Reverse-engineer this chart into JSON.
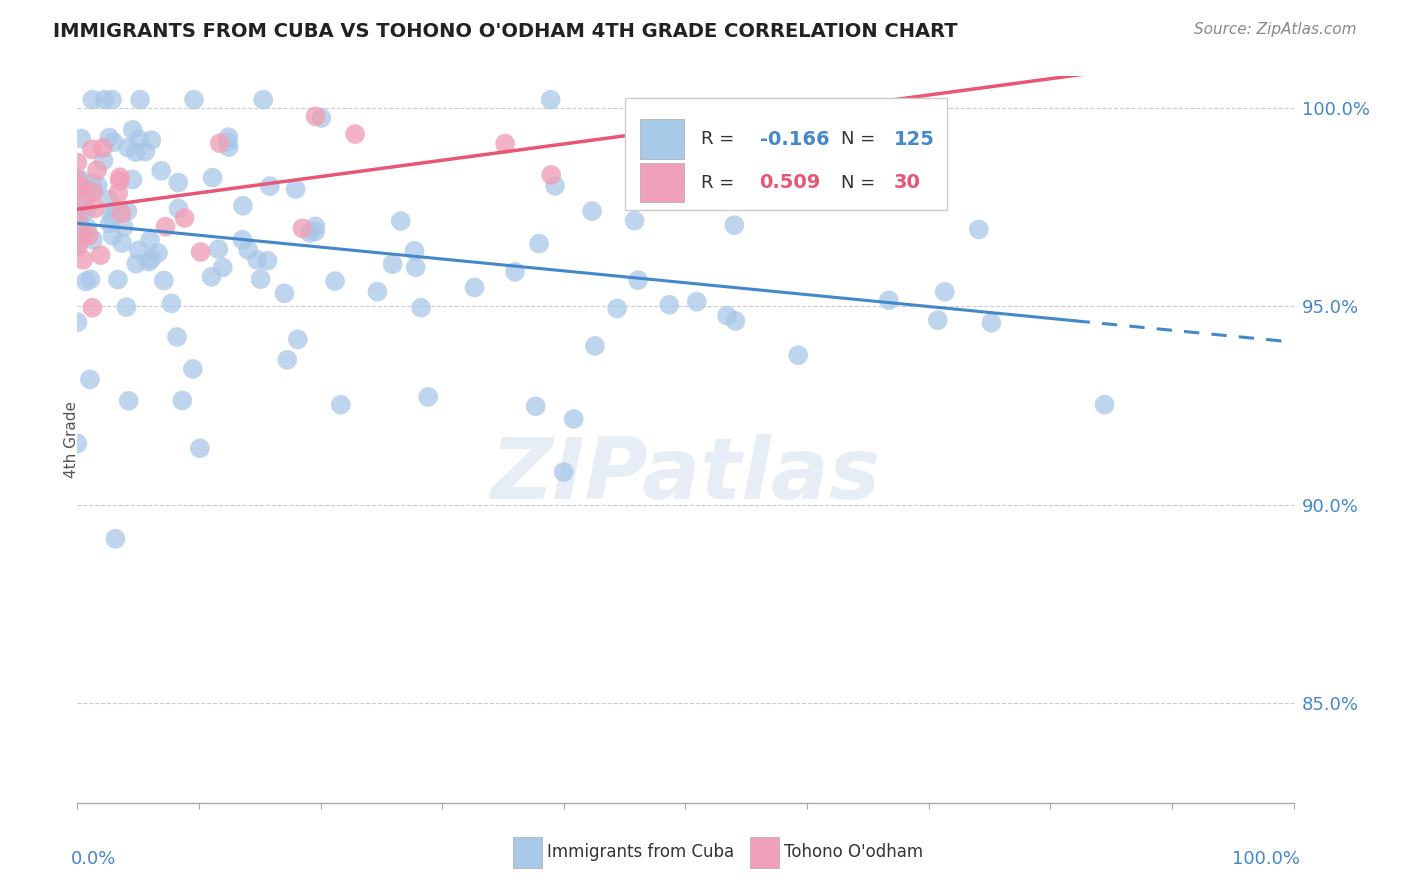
{
  "title": "IMMIGRANTS FROM CUBA VS TOHONO O'ODHAM 4TH GRADE CORRELATION CHART",
  "source_text": "Source: ZipAtlas.com",
  "ylabel": "4th Grade",
  "xlim": [
    0.0,
    1.0
  ],
  "ylim": [
    0.825,
    1.008
  ],
  "ytick_labels": [
    "85.0%",
    "90.0%",
    "95.0%",
    "100.0%"
  ],
  "ytick_values": [
    0.85,
    0.9,
    0.95,
    1.0
  ],
  "blue_color": "#a8c8e8",
  "pink_color": "#f0a0b8",
  "blue_line_color": "#4488cc",
  "pink_line_color": "#e85575",
  "axis_label_color": "#4488cc",
  "legend_R_blue": "-0.166",
  "legend_N_blue": "125",
  "legend_R_pink": "0.509",
  "legend_N_pink": "30",
  "blue_label": "Immigrants from Cuba",
  "pink_label": "Tohono O'odham",
  "watermark": "ZIPatlas",
  "blue_N": 125,
  "pink_N": 30,
  "blue_seed": 42,
  "pink_seed": 77
}
